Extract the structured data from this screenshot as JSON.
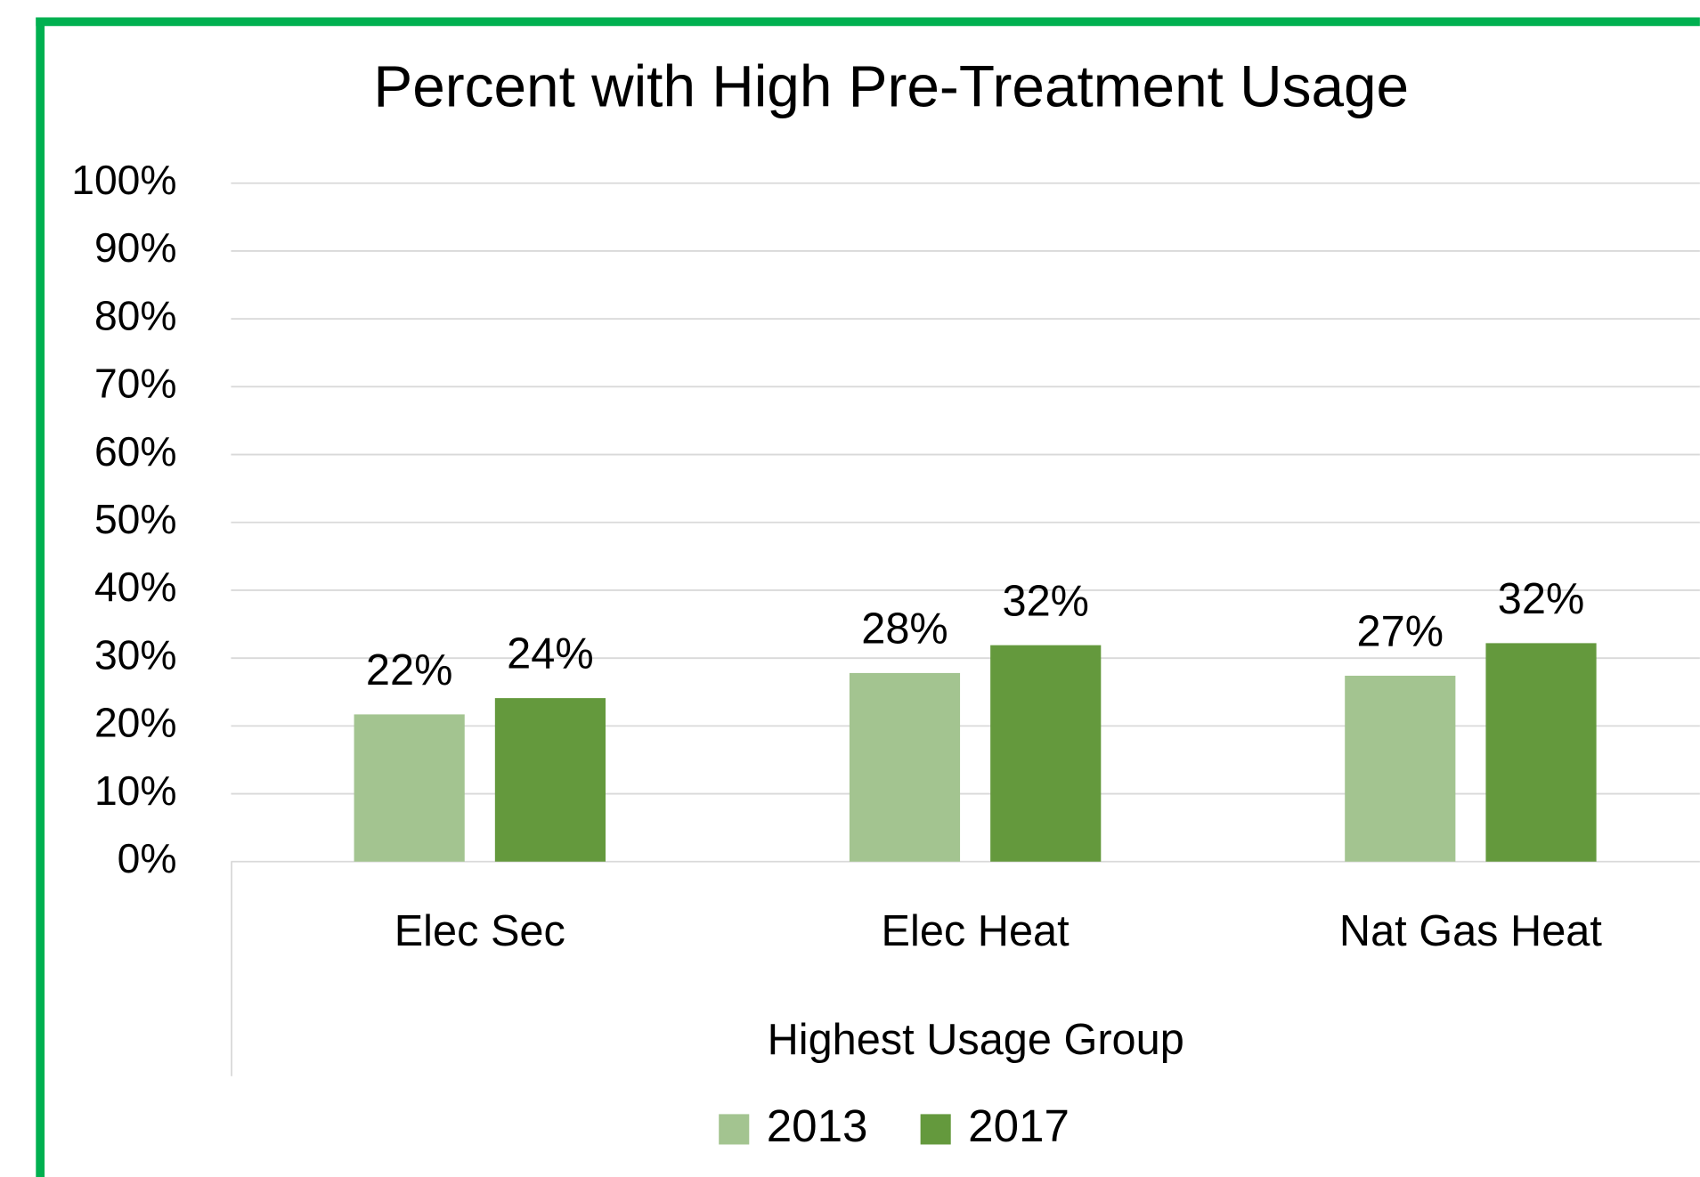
{
  "chart_data": {
    "type": "bar",
    "title": "Percent with High Pre-Treatment Usage",
    "x_label": "Highest Usage Group",
    "categories": [
      "Elec Sec",
      "Elec Heat",
      "Nat Gas Heat"
    ],
    "series": [
      {
        "name": "2013",
        "color": "#a3c490",
        "values": [
          21.7,
          27.8,
          27.4
        ],
        "value_labels": [
          "22%",
          "28%",
          "27%"
        ]
      },
      {
        "name": "2017",
        "color": "#64993d",
        "values": [
          24.1,
          31.9,
          32.2
        ],
        "value_labels": [
          "24%",
          "32%",
          "32%"
        ]
      }
    ],
    "ylim": [
      0,
      100
    ],
    "yticks": [
      {
        "value": 0,
        "label": "0%"
      },
      {
        "value": 10,
        "label": "10%"
      },
      {
        "value": 20,
        "label": "20%"
      },
      {
        "value": 30,
        "label": "30%"
      },
      {
        "value": 40,
        "label": "40%"
      },
      {
        "value": 50,
        "label": "50%"
      },
      {
        "value": 60,
        "label": "60%"
      },
      {
        "value": 70,
        "label": "70%"
      },
      {
        "value": 80,
        "label": "80%"
      },
      {
        "value": 90,
        "label": "90%"
      },
      {
        "value": 100,
        "label": "100%"
      }
    ],
    "grid": true,
    "legend": "bottom"
  }
}
